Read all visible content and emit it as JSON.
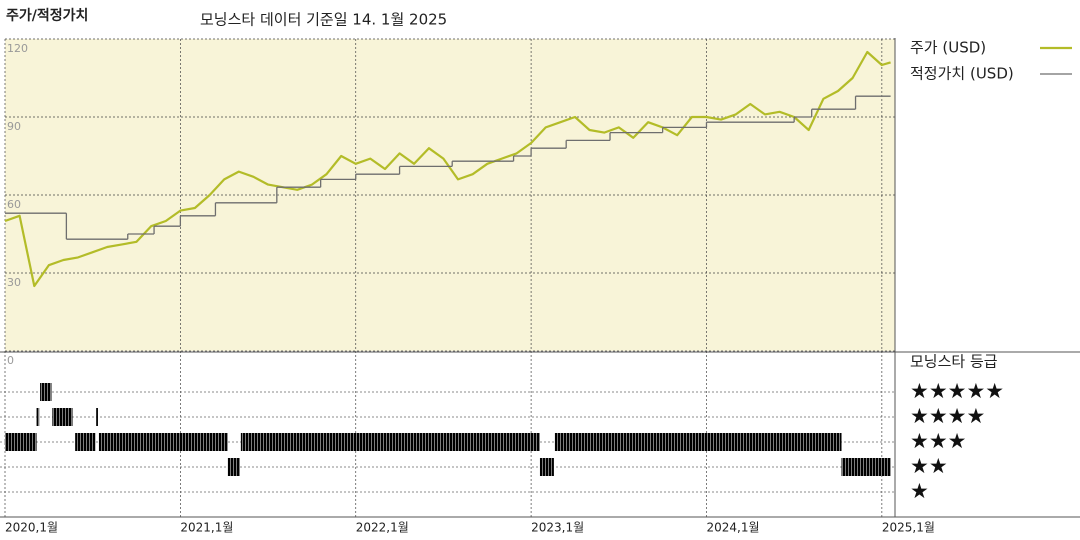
{
  "chart_data": [
    {
      "type": "line",
      "title": "주가/적정가치",
      "subtitle": "모닝스타 데이터 기준일 14. 1월 2025",
      "xlim": [
        2020,
        2025.075
      ],
      "ylim": [
        0,
        120
      ],
      "yticks": [
        0,
        30,
        60,
        90,
        120
      ],
      "grid": true,
      "legend": "right",
      "background": "#f8f4d8",
      "series": [
        {
          "name": "주가 (USD)",
          "color": "#b3bc28",
          "step": false,
          "x": [
            2020,
            2020.083,
            2020.167,
            2020.25,
            2020.333,
            2020.417,
            2020.5,
            2020.583,
            2020.667,
            2020.75,
            2020.833,
            2020.917,
            2021,
            2021.083,
            2021.167,
            2021.25,
            2021.333,
            2021.417,
            2021.5,
            2021.583,
            2021.667,
            2021.75,
            2021.833,
            2021.917,
            2022,
            2022.083,
            2022.167,
            2022.25,
            2022.333,
            2022.417,
            2022.5,
            2022.583,
            2022.667,
            2022.75,
            2022.833,
            2022.917,
            2023,
            2023.083,
            2023.167,
            2023.25,
            2023.333,
            2023.417,
            2023.5,
            2023.583,
            2023.667,
            2023.75,
            2023.833,
            2023.917,
            2024,
            2024.083,
            2024.167,
            2024.25,
            2024.333,
            2024.417,
            2024.5,
            2024.583,
            2024.667,
            2024.75,
            2024.833,
            2024.917,
            2025,
            2025.05
          ],
          "values": [
            50,
            52,
            25,
            33,
            35,
            36,
            38,
            40,
            41,
            42,
            48,
            50,
            54,
            55,
            60,
            66,
            69,
            67,
            64,
            63,
            62,
            64,
            68,
            75,
            72,
            74,
            70,
            76,
            72,
            78,
            74,
            66,
            68,
            72,
            74,
            76,
            80,
            86,
            88,
            90,
            85,
            84,
            86,
            82,
            88,
            86,
            83,
            90,
            90,
            89,
            91,
            95,
            91,
            92,
            90,
            85,
            97,
            100,
            105,
            115,
            110,
            111
          ]
        },
        {
          "name": "적정가치 (USD)",
          "color": "#6e6e6e",
          "step": true,
          "x": [
            2020,
            2020.35,
            2020.7,
            2020.85,
            2021,
            2021.2,
            2021.55,
            2021.8,
            2022,
            2022.25,
            2022.55,
            2022.9,
            2023,
            2023.2,
            2023.45,
            2023.75,
            2024,
            2024.5,
            2024.6,
            2024.85
          ],
          "values": [
            53,
            43,
            45,
            48,
            52,
            57,
            63,
            66,
            68,
            71,
            73,
            75,
            78,
            81,
            84,
            86,
            88,
            90,
            93,
            98
          ]
        }
      ]
    },
    {
      "type": "timeline",
      "title": "모닝스타 등급",
      "categories": [
        "★★★★★",
        "★★★★",
        "★★★",
        "★★",
        "★"
      ],
      "category_values": [
        5,
        4,
        3,
        2,
        1
      ],
      "colors": [
        "#3f8a6a",
        "#222222",
        "#222222",
        "#222222",
        "#222222"
      ],
      "xlim": [
        2020,
        2025.075
      ],
      "xticks": [
        {
          "value": 2020,
          "label": "2020,1월"
        },
        {
          "value": 2021,
          "label": "2021,1월"
        },
        {
          "value": 2022,
          "label": "2022,1월"
        },
        {
          "value": 2023,
          "label": "2023,1월"
        },
        {
          "value": 2024,
          "label": "2024,1월"
        },
        {
          "value": 2025,
          "label": "2025,1월"
        }
      ],
      "periods": [
        {
          "start": 2020,
          "end": 2020.18,
          "rating": 3
        },
        {
          "start": 2020.18,
          "end": 2020.195,
          "rating": 4
        },
        {
          "start": 2020.2,
          "end": 2020.265,
          "rating": 5
        },
        {
          "start": 2020.27,
          "end": 2020.385,
          "rating": 4
        },
        {
          "start": 2020.4,
          "end": 2020.515,
          "rating": 3
        },
        {
          "start": 2020.52,
          "end": 2020.53,
          "rating": 4
        },
        {
          "start": 2020.535,
          "end": 2021.27,
          "rating": 3
        },
        {
          "start": 2021.27,
          "end": 2021.34,
          "rating": 2
        },
        {
          "start": 2021.345,
          "end": 2023.05,
          "rating": 3
        },
        {
          "start": 2023.05,
          "end": 2023.13,
          "rating": 2
        },
        {
          "start": 2023.135,
          "end": 2024.77,
          "rating": 3
        },
        {
          "start": 2024.77,
          "end": 2025.05,
          "rating": 2
        }
      ]
    }
  ]
}
